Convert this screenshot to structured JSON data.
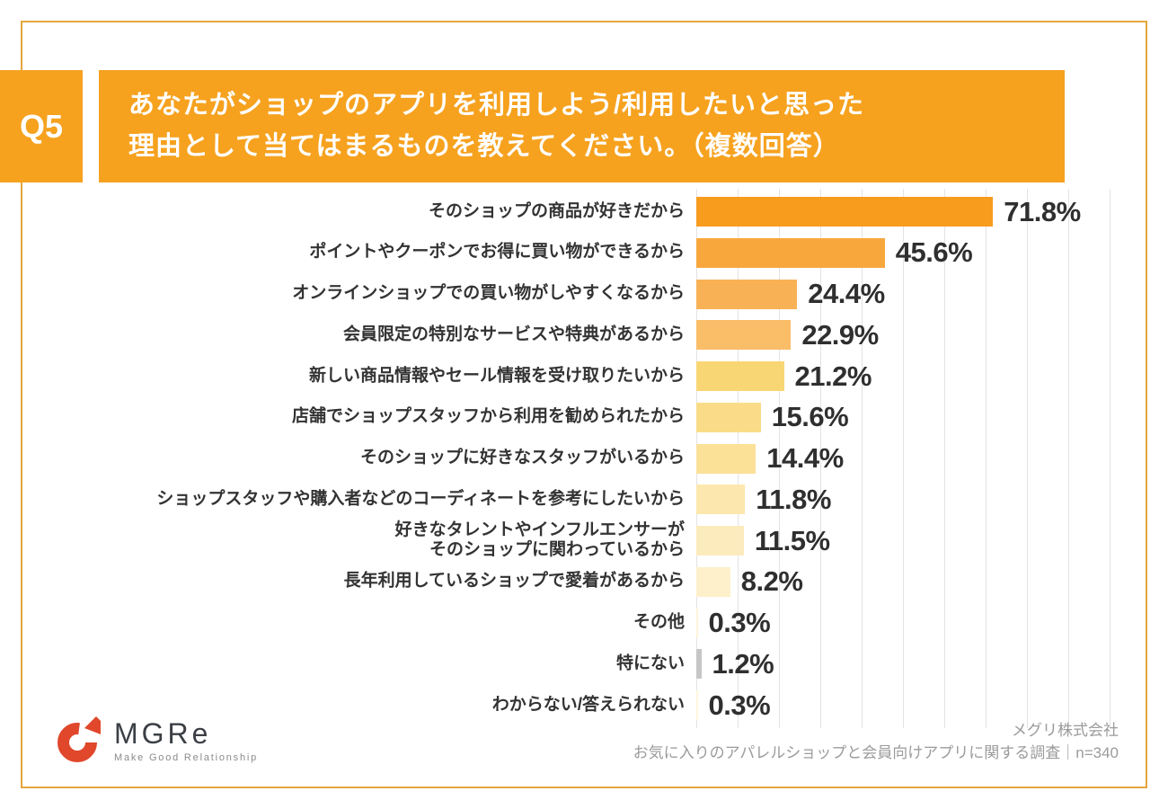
{
  "page": {
    "question_number": "Q5",
    "title_line1": "あなたがショップのアプリを利用しよう/利用したいと思った",
    "title_line2": "理由として当てはまるものを教えてください。（複数回答）"
  },
  "colors": {
    "accent_orange": "#F6A21F",
    "frame_border": "#E5A63F",
    "gridline": "#E3E3E3",
    "label_text": "#333333",
    "value_text": "#2F2F2F",
    "footer_text": "#9B9B9B",
    "logo_red": "#E0472B",
    "logo_text": "#3B3F45"
  },
  "chart_data": {
    "type": "bar",
    "orientation": "horizontal",
    "title": "あなたがショップのアプリを利用しよう/利用したいと思った理由として当てはまるものを教えてください。（複数回答）",
    "unit": "%",
    "xlim": [
      0,
      100
    ],
    "gridline_step": 10,
    "grid": true,
    "legend": false,
    "categories": [
      "そのショップの商品が好きだから",
      "ポイントやクーポンでお得に買い物ができるから",
      "オンラインショップでの買い物がしやすくなるから",
      "会員限定の特別なサービスや特典があるから",
      "新しい商品情報やセール情報を受け取りたいから",
      "店舗でショップスタッフから利用を勧められたから",
      "そのショップに好きなスタッフがいるから",
      "ショップスタッフや購入者などのコーディネートを参考にしたいから",
      "好きなタレントやインフルエンサーが\nそのショップに関わっているから",
      "長年利用しているショップで愛着があるから",
      "その他",
      "特にない",
      "わからない/答えられない"
    ],
    "values": [
      71.8,
      45.6,
      24.4,
      22.9,
      21.2,
      15.6,
      14.4,
      11.8,
      11.5,
      8.2,
      0.3,
      1.2,
      0.3
    ],
    "value_labels": [
      "71.8%",
      "45.6%",
      "24.4%",
      "22.9%",
      "21.2%",
      "15.6%",
      "14.4%",
      "11.8%",
      "11.5%",
      "8.2%",
      "0.3%",
      "1.2%",
      "0.3%"
    ],
    "bar_colors": [
      "#F89C1E",
      "#F8A73D",
      "#F9B156",
      "#FABD68",
      "#F9D674",
      "#FADC88",
      "#FBE098",
      "#FCE8AE",
      "#FCEBBD",
      "#FDF0CA",
      "#FDF4D8",
      "#C6C6C6",
      "#FDF6DE"
    ]
  },
  "footer": {
    "logo_name": "MGRe",
    "logo_tagline": "Make Good Relationship",
    "source_line1": "メグリ株式会社",
    "source_line2": "お気に入りのアパレルショップと会員向けアプリに関する調査｜n=340"
  }
}
